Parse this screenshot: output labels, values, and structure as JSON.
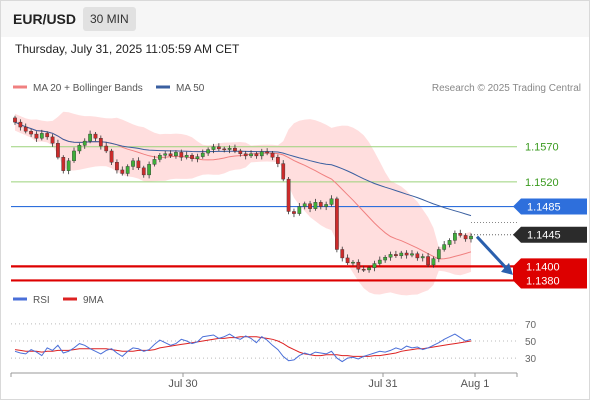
{
  "header": {
    "pair": "EUR/USD",
    "timeframe": "30 MIN",
    "timestamp": "Thursday, July 31, 2025 11:05:59 AM CET"
  },
  "legend": {
    "ma20_label": "MA 20 + Bollinger Bands",
    "ma50_label": "MA 50",
    "credit": "Research © 2025 Trading Central",
    "rsi_label": "RSI",
    "ma9_label": "9MA"
  },
  "colors": {
    "ma20": "#f08080",
    "ma50": "#3a5fa0",
    "bollinger_fill": "#ffd3d3",
    "resistance": "#2e6fdc",
    "support": "#dd0000",
    "green_level": "#9bd27a",
    "green_label": "#3a9a1f",
    "candle_up": "#3fae3a",
    "candle_down": "#cc2b2b",
    "rsi": "#4a6fd8",
    "rsi_ma": "#dd2222",
    "forecast_arrow": "#2a5fad",
    "current_price_bg": "#2b2b2b"
  },
  "chart_data": [
    {
      "type": "candlestick",
      "title": "",
      "timeframe": "30 MIN",
      "x_tick_labels": [
        "Jul 30",
        "Jul 31",
        "Aug 1"
      ],
      "ylim": [
        1.1365,
        1.1635
      ],
      "levels": [
        {
          "value": 1.157,
          "label": "1.1570",
          "kind": "green"
        },
        {
          "value": 1.152,
          "label": "1.1520",
          "kind": "green"
        },
        {
          "value": 1.1485,
          "label": "1.1485",
          "kind": "resistance"
        },
        {
          "value": 1.1445,
          "label": "1.1445",
          "kind": "current"
        },
        {
          "value": 1.14,
          "label": "1.1400",
          "kind": "support"
        },
        {
          "value": 1.138,
          "label": "1.1380",
          "kind": "support"
        }
      ],
      "forecast_arrow": {
        "from": 1.1445,
        "to": 1.1385
      },
      "series": [
        {
          "name": "Price",
          "close": [
            1.1605,
            1.1598,
            1.1592,
            1.1588,
            1.1582,
            1.1589,
            1.1584,
            1.1575,
            1.1555,
            1.1536,
            1.155,
            1.1564,
            1.1572,
            1.1578,
            1.1588,
            1.1582,
            1.1571,
            1.1564,
            1.1548,
            1.1537,
            1.1532,
            1.1542,
            1.155,
            1.154,
            1.153,
            1.1545,
            1.1552,
            1.1558,
            1.156,
            1.1557,
            1.1562,
            1.1555,
            1.1558,
            1.1553,
            1.1556,
            1.1561,
            1.1566,
            1.157,
            1.1567,
            1.1566,
            1.1568,
            1.1564,
            1.156,
            1.1557,
            1.156,
            1.1557,
            1.1563,
            1.1561,
            1.1555,
            1.1546,
            1.1524,
            1.1478,
            1.1475,
            1.1485,
            1.1489,
            1.1482,
            1.1491,
            1.1485,
            1.1488,
            1.1496,
            1.1424,
            1.1412,
            1.1405,
            1.1406,
            1.1396,
            1.1395,
            1.1398,
            1.1404,
            1.1409,
            1.1413,
            1.1417,
            1.1415,
            1.1419,
            1.1416,
            1.1418,
            1.1412,
            1.1414,
            1.1402,
            1.1411,
            1.1424,
            1.1431,
            1.1437,
            1.1447,
            1.1444,
            1.1439,
            1.1443
          ]
        },
        {
          "name": "MA 20 + Bollinger Bands"
        },
        {
          "name": "MA 50"
        }
      ]
    },
    {
      "type": "line",
      "title": "",
      "x_tick_labels": [
        "Jul 30",
        "Jul 31",
        "Aug 1"
      ],
      "ylim": [
        15,
        85
      ],
      "y_ticks": [
        70,
        50,
        30
      ],
      "reference_line": 50,
      "series": [
        {
          "name": "RSI",
          "values": [
            38,
            36,
            35,
            40,
            37,
            33,
            42,
            39,
            45,
            36,
            38,
            42,
            47,
            45,
            41,
            38,
            35,
            39,
            41,
            36,
            32,
            38,
            42,
            41,
            38,
            40,
            46,
            51,
            48,
            45,
            47,
            52,
            50,
            47,
            49,
            55,
            56,
            57,
            53,
            55,
            58,
            54,
            52,
            56,
            53,
            48,
            55,
            51,
            45,
            40,
            32,
            27,
            28,
            33,
            36,
            34,
            37,
            36,
            35,
            38,
            30,
            26,
            30,
            31,
            29,
            32,
            34,
            36,
            38,
            37,
            39,
            42,
            40,
            44,
            42,
            43,
            40,
            42,
            45,
            48,
            52,
            55,
            58,
            54,
            50,
            52
          ]
        },
        {
          "name": "9MA",
          "values": [
            40,
            39,
            38,
            38,
            38,
            37,
            38,
            38,
            39,
            39,
            39,
            40,
            41,
            41,
            41,
            41,
            41,
            41,
            40,
            39,
            38,
            38,
            38,
            39,
            39,
            39,
            40,
            42,
            43,
            44,
            45,
            46,
            47,
            48,
            49,
            50,
            51,
            52,
            53,
            53,
            54,
            54,
            55,
            55,
            55,
            55,
            54,
            53,
            52,
            50,
            47,
            43,
            40,
            37,
            35,
            34,
            33,
            33,
            34,
            34,
            34,
            33,
            33,
            32,
            32,
            32,
            32,
            33,
            33,
            34,
            35,
            36,
            38,
            39,
            40,
            41,
            41,
            42,
            43,
            44,
            45,
            46,
            47,
            48,
            49,
            50
          ]
        }
      ]
    }
  ]
}
